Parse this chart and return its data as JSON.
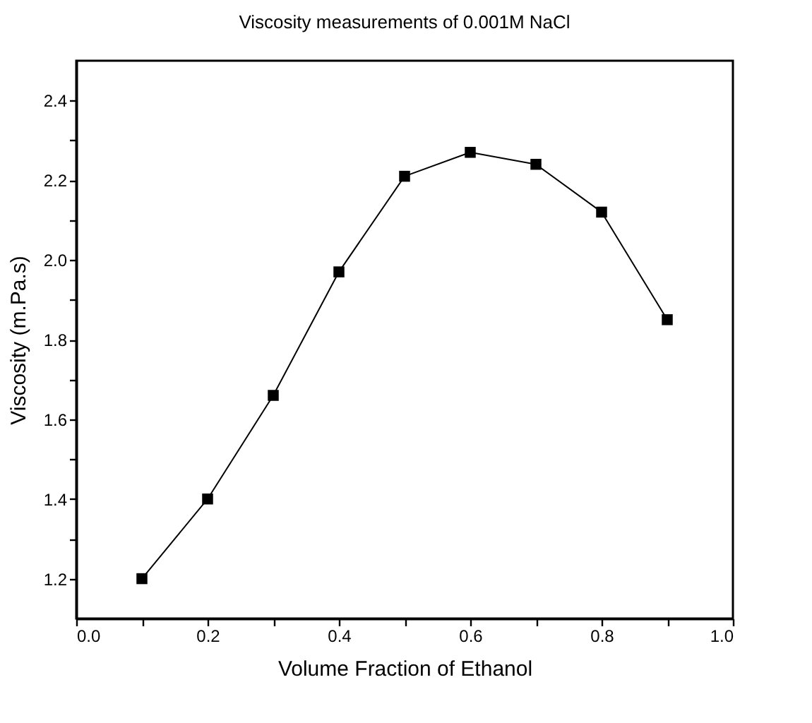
{
  "chart_data": {
    "type": "line",
    "title": "Viscosity measurements of 0.001M NaCl",
    "xlabel": "Volume Fraction of Ethanol",
    "ylabel": "Viscosity (m.Pa.s)",
    "x": [
      0.1,
      0.2,
      0.3,
      0.4,
      0.5,
      0.6,
      0.7,
      0.8,
      0.9
    ],
    "series": [
      {
        "color": "#000000",
        "values": [
          1.2,
          1.4,
          1.66,
          1.97,
          2.21,
          2.27,
          2.24,
          2.12,
          1.85
        ]
      }
    ],
    "xlim": [
      0.0,
      1.0
    ],
    "xticks": [
      {
        "value": 0,
        "label": "0.0"
      },
      {
        "value": 0.1,
        "label": null
      },
      0.2,
      {
        "value": 0.3,
        "label": null
      },
      0.4,
      {
        "value": 0.5,
        "label": null
      },
      0.6,
      {
        "value": 0.7,
        "label": null
      },
      0.8,
      {
        "value": 0.9,
        "label": null
      },
      {
        "value": 1,
        "label": "1.0"
      }
    ],
    "ylim": [
      1.1,
      2.5
    ],
    "yticks": [
      1.2,
      {
        "value": 1.3,
        "label": null
      },
      1.4,
      {
        "value": 1.5,
        "label": null
      },
      1.6,
      {
        "value": 1.7,
        "label": null
      },
      1.8,
      {
        "value": 1.9,
        "label": null
      },
      {
        "value": 2,
        "label": "2.0"
      },
      {
        "value": 2.1,
        "label": null
      },
      2.2,
      {
        "value": 2.3,
        "label": null
      },
      2.4
    ],
    "marker": "square",
    "line_style": "solid"
  }
}
